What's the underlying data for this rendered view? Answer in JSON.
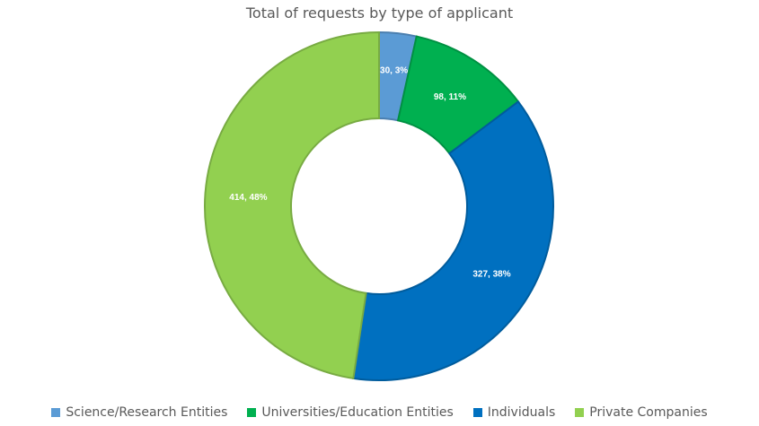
{
  "chart_data": {
    "type": "pie",
    "title": "Total of requests by type of applicant",
    "hole": true,
    "legend_position": "bottom",
    "slices": [
      {
        "label": "Science/Research Entities",
        "value": 30,
        "percent": "3%",
        "color": "#5b9bd5"
      },
      {
        "label": "Universities/Education Entities",
        "value": 98,
        "percent": "11%",
        "color": "#00b050"
      },
      {
        "label": "Individuals",
        "value": 327,
        "percent": "38%",
        "color": "#0070c0"
      },
      {
        "label": "Private Companies",
        "value": 414,
        "percent": "48%",
        "color": "#92d050"
      }
    ]
  }
}
